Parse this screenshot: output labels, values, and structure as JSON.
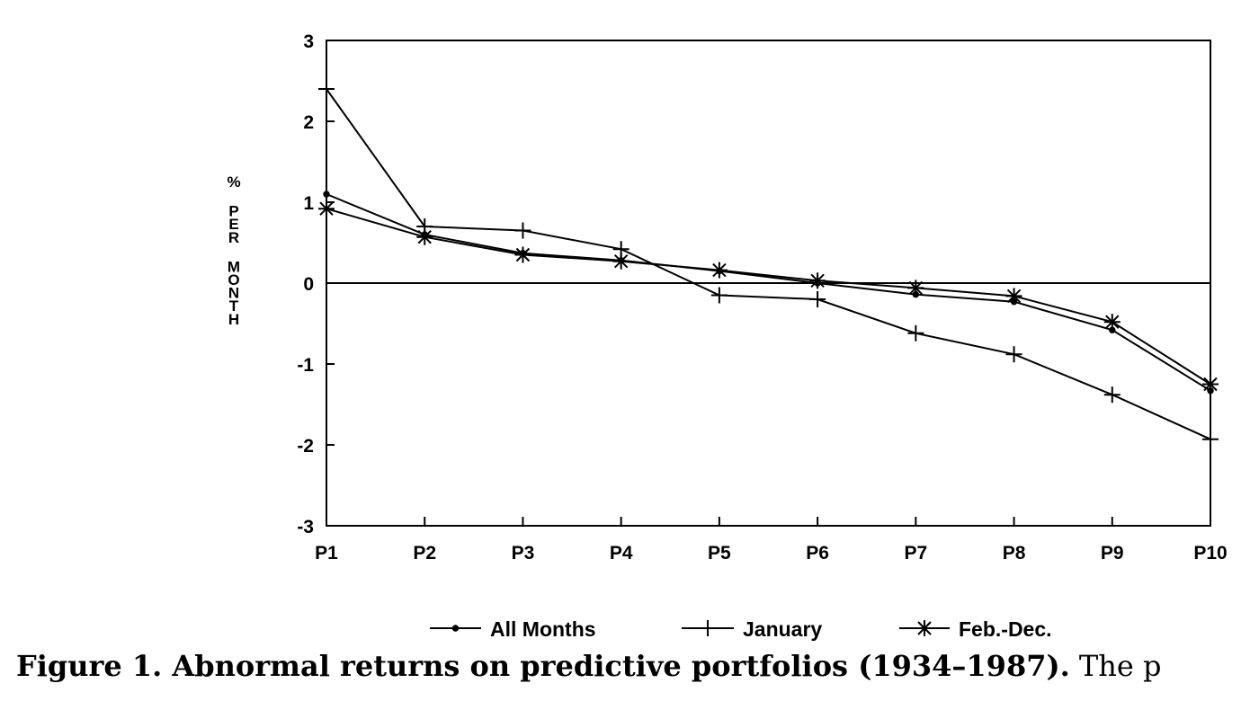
{
  "chart_data": {
    "type": "line",
    "categories": [
      "P1",
      "P2",
      "P3",
      "P4",
      "P5",
      "P6",
      "P7",
      "P8",
      "P9",
      "P10"
    ],
    "ylabel": "% PER MONTH",
    "ylim": [
      -3,
      3
    ],
    "yticks": [
      "3",
      "2",
      "1",
      "0",
      "-1",
      "-2",
      "-3"
    ],
    "zero_line": true,
    "grid": false,
    "legend_position": "bottom",
    "series": [
      {
        "name": "All Months",
        "marker": "dot",
        "values": [
          1.1,
          0.6,
          0.37,
          0.28,
          0.15,
          0.0,
          -0.14,
          -0.23,
          -0.58,
          -1.33
        ]
      },
      {
        "name": "January",
        "marker": "plus",
        "values": [
          2.4,
          0.7,
          0.65,
          0.42,
          -0.15,
          -0.2,
          -0.62,
          -0.88,
          -1.38,
          -1.93
        ]
      },
      {
        "name": "Feb.-Dec.",
        "marker": "asterisk",
        "values": [
          0.92,
          0.57,
          0.35,
          0.27,
          0.16,
          0.03,
          -0.06,
          -0.16,
          -0.48,
          -1.25
        ]
      }
    ]
  },
  "caption": {
    "bold_text": "Figure 1. Abnormal returns on predictive portfolios (1934–1987).",
    "normal_text": " The p"
  }
}
